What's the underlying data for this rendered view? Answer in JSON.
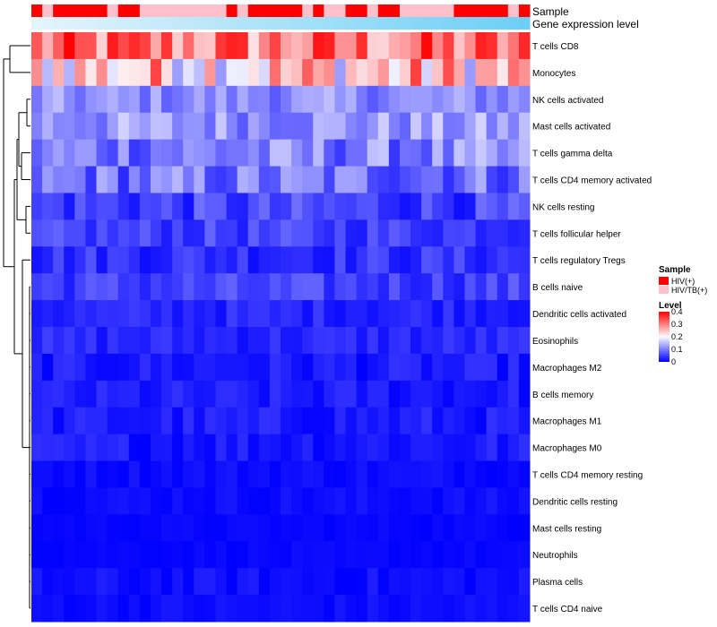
{
  "chart_data": {
    "type": "heatmap",
    "title": "",
    "n_samples": 46,
    "annotations": [
      {
        "label": "Sample",
        "legend_title": "Sample"
      },
      {
        "label": "Gene expression level"
      }
    ],
    "sample_groups": [
      {
        "name": "HIV(+)",
        "color": "#ff0000"
      },
      {
        "name": "HIV/TB(+)",
        "color": "#ffc0cb"
      }
    ],
    "sample_assignment": [
      0,
      1,
      0,
      0,
      0,
      0,
      0,
      1,
      0,
      0,
      1,
      1,
      1,
      1,
      1,
      1,
      1,
      1,
      0,
      1,
      0,
      0,
      0,
      0,
      0,
      1,
      0,
      1,
      1,
      0,
      0,
      1,
      0,
      0,
      1,
      1,
      1,
      1,
      1,
      0,
      0,
      0,
      0,
      0,
      1,
      0
    ],
    "expression_bar_color_start": "#e4f4fb",
    "expression_bar_color_end": "#6ecff6",
    "rows": [
      "T cells CD8",
      "Monocytes",
      "NK cells activated",
      "Mast cells activated",
      "T cells gamma delta",
      "T cells CD4 memory activated",
      "NK cells resting",
      "T cells follicular helper",
      "T cells regulatory  Tregs",
      "B cells naive",
      "Dendritic cells activated",
      "Eosinophils",
      "Macrophages M2",
      "B cells memory",
      "Macrophages M1",
      "Macrophages M0",
      "T cells CD4 memory resting",
      "Dendritic cells resting",
      "Mast cells resting",
      "Neutrophils",
      "Plasma cells",
      "T cells CD4 naive"
    ],
    "row_means": [
      0.3,
      0.24,
      0.11,
      0.12,
      0.1,
      0.09,
      0.05,
      0.05,
      0.04,
      0.05,
      0.03,
      0.03,
      0.02,
      0.02,
      0.02,
      0.02,
      0.01,
      0.01,
      0.005,
      0.005,
      0.01,
      0.01
    ],
    "row_spreads": [
      0.1,
      0.12,
      0.04,
      0.05,
      0.06,
      0.06,
      0.04,
      0.03,
      0.03,
      0.03,
      0.02,
      0.02,
      0.02,
      0.02,
      0.02,
      0.02,
      0.01,
      0.01,
      0.005,
      0.005,
      0.015,
      0.01
    ],
    "color_scale": {
      "legend_title": "Level",
      "stops": [
        {
          "value": 0,
          "color": "#0000ff"
        },
        {
          "value": 0.2,
          "color": "#fcfcff"
        },
        {
          "value": 0.4,
          "color": "#ff0000"
        }
      ],
      "ticks": [
        "0.4",
        "0.3",
        "0.2",
        "0.1",
        "0"
      ],
      "range": [
        0,
        0.4
      ]
    },
    "dendrogram": "row"
  }
}
